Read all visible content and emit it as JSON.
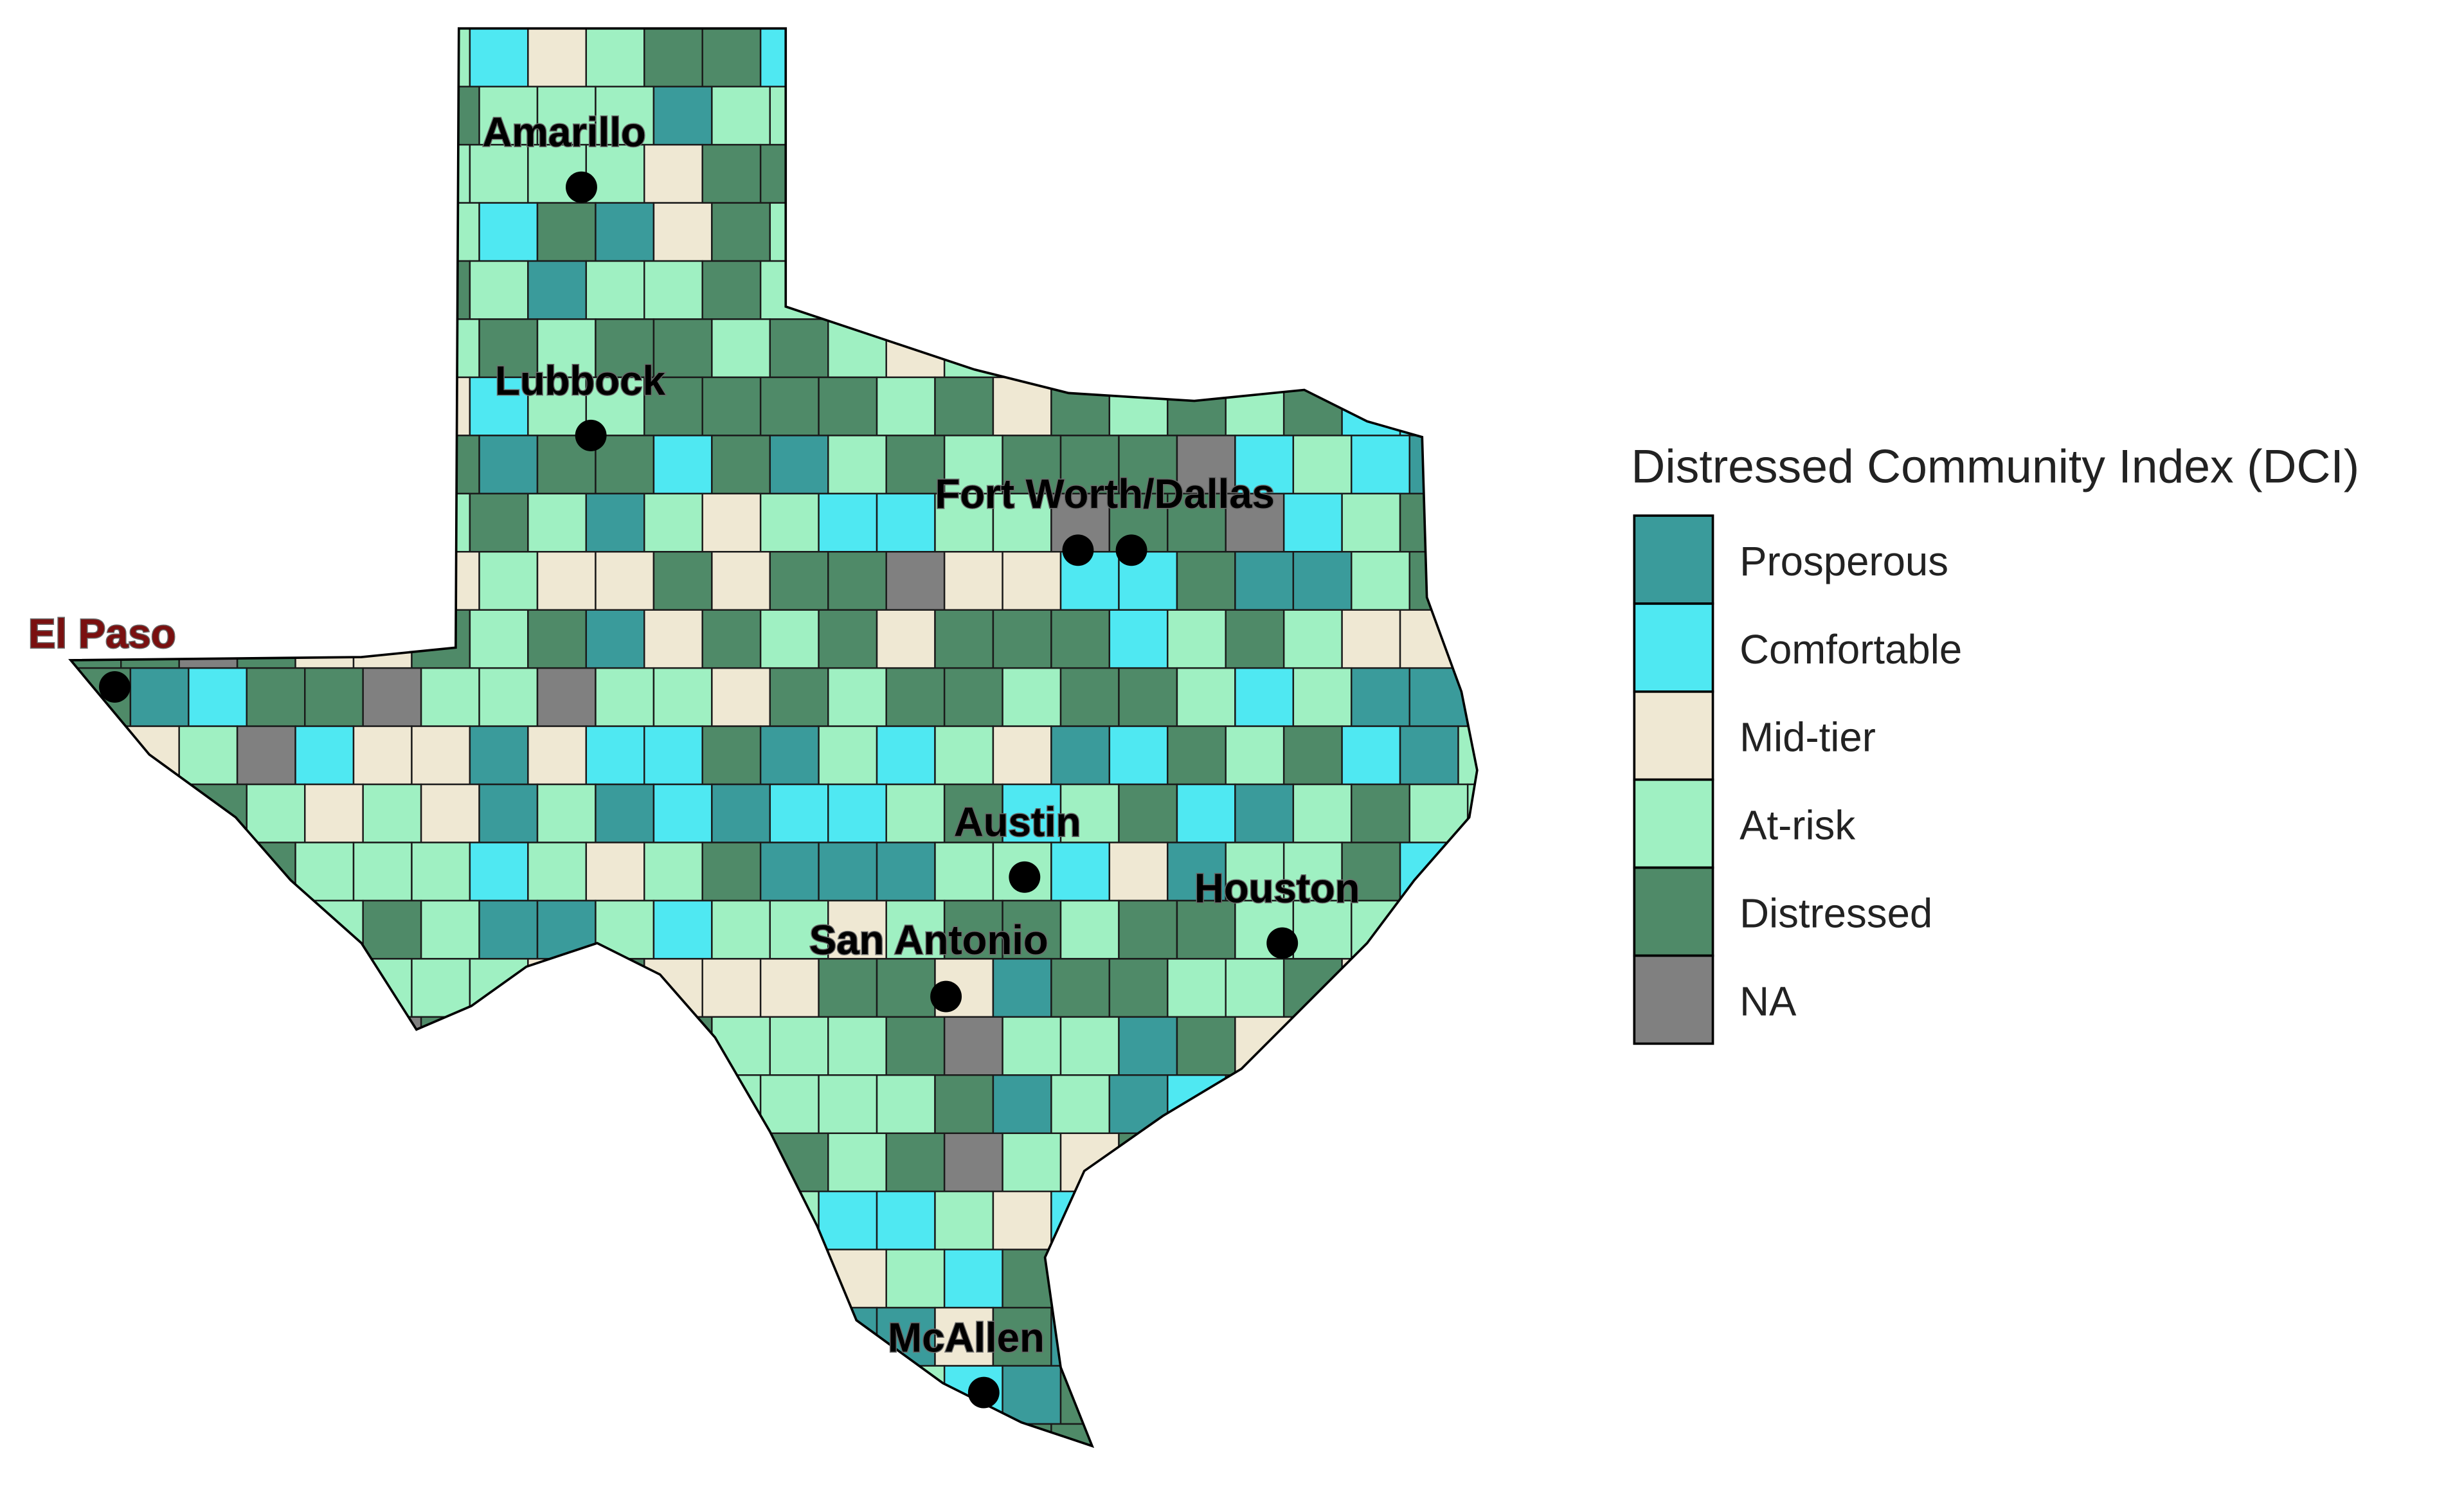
{
  "legend": {
    "title": "Distressed Community Index (DCI)",
    "items": [
      {
        "label": "Prosperous",
        "color": "#3a9b9b"
      },
      {
        "label": "Comfortable",
        "color": "#4fe8f2"
      },
      {
        "label": "Mid-tier",
        "color": "#efe8d3"
      },
      {
        "label": "At-risk",
        "color": "#9ff0c2"
      },
      {
        "label": "Distressed",
        "color": "#4f8a68"
      },
      {
        "label": "NA",
        "color": "#808080"
      }
    ]
  },
  "cities": [
    {
      "name": "Amarillo"
    },
    {
      "name": "Lubbock"
    },
    {
      "name": "Fort Worth/Dallas"
    },
    {
      "name": "El Paso"
    },
    {
      "name": "Austin"
    },
    {
      "name": "Houston"
    },
    {
      "name": "San Antonio"
    },
    {
      "name": "McAllen"
    }
  ]
}
